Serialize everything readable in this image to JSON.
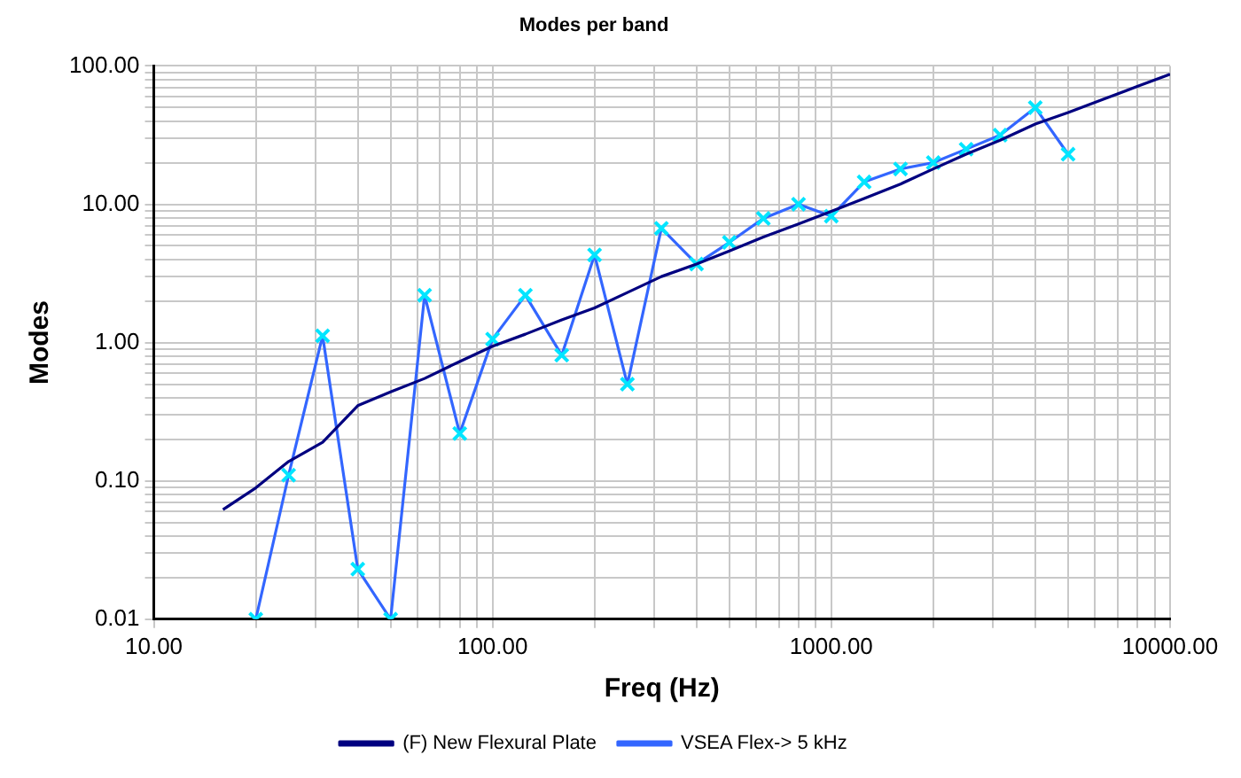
{
  "chart_data": {
    "type": "line",
    "title": "Modes per band",
    "xlabel": "Freq (Hz)",
    "ylabel": "Modes",
    "log": "xy",
    "grid": true,
    "legend": "bottom",
    "xlim": [
      10,
      10000
    ],
    "ylim": [
      0.01,
      100
    ],
    "xticks": [
      {
        "value": 10,
        "label": "10.00"
      },
      {
        "value": 20,
        "label": null
      },
      {
        "value": 30,
        "label": null
      },
      {
        "value": 40,
        "label": null
      },
      {
        "value": 50,
        "label": null
      },
      {
        "value": 60,
        "label": null
      },
      {
        "value": 70,
        "label": null
      },
      {
        "value": 80,
        "label": null
      },
      {
        "value": 90,
        "label": null
      },
      {
        "value": 100,
        "label": "100.00"
      },
      {
        "value": 200,
        "label": null
      },
      {
        "value": 300,
        "label": null
      },
      {
        "value": 400,
        "label": null
      },
      {
        "value": 500,
        "label": null
      },
      {
        "value": 600,
        "label": null
      },
      {
        "value": 700,
        "label": null
      },
      {
        "value": 800,
        "label": null
      },
      {
        "value": 900,
        "label": null
      },
      {
        "value": 1000,
        "label": "1000.00"
      },
      {
        "value": 2000,
        "label": null
      },
      {
        "value": 3000,
        "label": null
      },
      {
        "value": 4000,
        "label": null
      },
      {
        "value": 5000,
        "label": null
      },
      {
        "value": 6000,
        "label": null
      },
      {
        "value": 7000,
        "label": null
      },
      {
        "value": 8000,
        "label": null
      },
      {
        "value": 9000,
        "label": null
      },
      {
        "value": 10000,
        "label": "10000.00"
      }
    ],
    "yticks": [
      {
        "value": 0.01,
        "label": "0.01"
      },
      {
        "value": 0.02,
        "label": null
      },
      {
        "value": 0.03,
        "label": null
      },
      {
        "value": 0.04,
        "label": null
      },
      {
        "value": 0.05,
        "label": null
      },
      {
        "value": 0.06,
        "label": null
      },
      {
        "value": 0.07,
        "label": null
      },
      {
        "value": 0.08,
        "label": null
      },
      {
        "value": 0.09,
        "label": null
      },
      {
        "value": 0.1,
        "label": "0.10"
      },
      {
        "value": 0.2,
        "label": null
      },
      {
        "value": 0.3,
        "label": null
      },
      {
        "value": 0.4,
        "label": null
      },
      {
        "value": 0.5,
        "label": null
      },
      {
        "value": 0.6,
        "label": null
      },
      {
        "value": 0.7,
        "label": null
      },
      {
        "value": 0.8,
        "label": null
      },
      {
        "value": 0.9,
        "label": null
      },
      {
        "value": 1,
        "label": "1.00"
      },
      {
        "value": 2,
        "label": null
      },
      {
        "value": 3,
        "label": null
      },
      {
        "value": 4,
        "label": null
      },
      {
        "value": 5,
        "label": null
      },
      {
        "value": 6,
        "label": null
      },
      {
        "value": 7,
        "label": null
      },
      {
        "value": 8,
        "label": null
      },
      {
        "value": 9,
        "label": null
      },
      {
        "value": 10,
        "label": "10.00"
      },
      {
        "value": 20,
        "label": null
      },
      {
        "value": 30,
        "label": null
      },
      {
        "value": 40,
        "label": null
      },
      {
        "value": 50,
        "label": null
      },
      {
        "value": 60,
        "label": null
      },
      {
        "value": 70,
        "label": null
      },
      {
        "value": 80,
        "label": null
      },
      {
        "value": 90,
        "label": null
      },
      {
        "value": 100,
        "label": "100.00"
      }
    ],
    "series": [
      {
        "name": "(F) New Flexural Plate",
        "color": "#000080",
        "marker": "none",
        "x": [
          16,
          20,
          25,
          31.5,
          40,
          50,
          63,
          80,
          100,
          125,
          160,
          200,
          250,
          315,
          400,
          500,
          630,
          800,
          1000,
          1250,
          1600,
          2000,
          2500,
          3150,
          4000,
          5000,
          6300,
          8000,
          10000
        ],
        "values": [
          0.062,
          0.089,
          0.138,
          0.19,
          0.35,
          0.44,
          0.55,
          0.73,
          0.94,
          1.15,
          1.46,
          1.78,
          2.3,
          3.0,
          3.7,
          4.6,
          5.8,
          7.2,
          8.9,
          11,
          14,
          18,
          23,
          29,
          38,
          46,
          57,
          71,
          87
        ]
      },
      {
        "name": "VSEA Flex-> 5 kHz",
        "color": "#3366ff",
        "marker": "cross",
        "x": [
          20,
          25,
          31.5,
          40,
          50,
          63,
          80,
          100,
          125,
          160,
          200,
          250,
          315,
          400,
          500,
          630,
          800,
          1000,
          1250,
          1600,
          2000,
          2500,
          3150,
          4000,
          5000
        ],
        "values": [
          0.01,
          0.11,
          1.12,
          0.023,
          0.01,
          2.2,
          0.22,
          1.06,
          2.2,
          0.81,
          4.3,
          0.5,
          6.7,
          3.7,
          5.3,
          7.9,
          10,
          8.2,
          14.5,
          18,
          20,
          25,
          31.6,
          50,
          23
        ]
      }
    ]
  }
}
